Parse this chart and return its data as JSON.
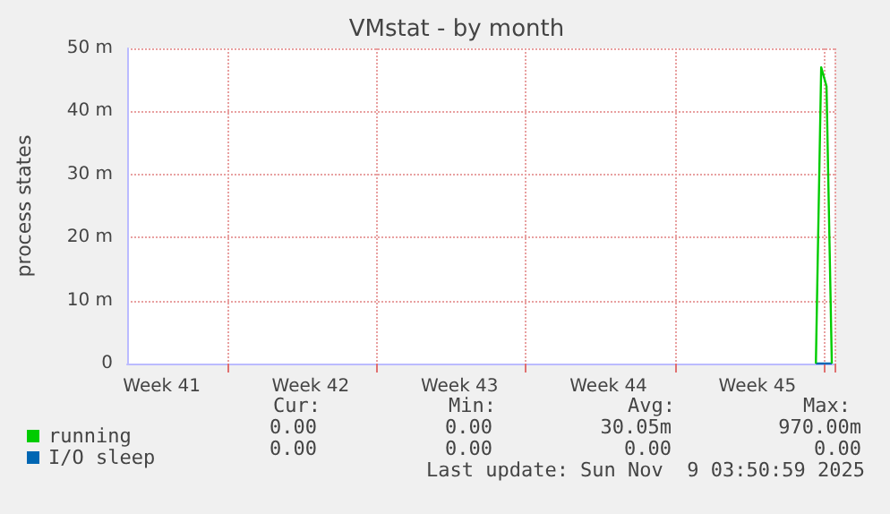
{
  "chart_data": {
    "type": "line",
    "title": "VMstat - by month",
    "ylabel": "process states",
    "categories": [
      null,
      null,
      null,
      null,
      null,
      null,
      "Week 41",
      null,
      null,
      null,
      null,
      null,
      null,
      null,
      null,
      null,
      null,
      null,
      null,
      null,
      null,
      null,
      null,
      null,
      null,
      null,
      null,
      null,
      null,
      null,
      null,
      null,
      null,
      null,
      "Week 42",
      null,
      null,
      null,
      null,
      null,
      null,
      null,
      null,
      null,
      null,
      null,
      null,
      null,
      null,
      null,
      null,
      null,
      null,
      null,
      null,
      null,
      null,
      null,
      null,
      null,
      null,
      null,
      "Week 43",
      null,
      null,
      null,
      null,
      null,
      null,
      null,
      null,
      null,
      null,
      null,
      null,
      null,
      null,
      null,
      null,
      null,
      null,
      null,
      null,
      null,
      null,
      null,
      null,
      null,
      null,
      null,
      "Week 44",
      null,
      null,
      null,
      null,
      null,
      null,
      null,
      null,
      null,
      null,
      null,
      null,
      null,
      null,
      null,
      null,
      null,
      null,
      null,
      null,
      null,
      null,
      null,
      null,
      null,
      null,
      null,
      "Week 45",
      null,
      null,
      null,
      null,
      null,
      null,
      null,
      null,
      null,
      null,
      null,
      null,
      null,
      null
    ],
    "series": [
      {
        "name": "running",
        "color": "#00cc00",
        "values": [
          null,
          null,
          null,
          null,
          null,
          null,
          null,
          null,
          null,
          null,
          null,
          null,
          null,
          null,
          null,
          null,
          null,
          null,
          null,
          null,
          null,
          null,
          null,
          null,
          null,
          null,
          null,
          null,
          null,
          null,
          null,
          null,
          null,
          null,
          null,
          null,
          null,
          null,
          null,
          null,
          null,
          null,
          null,
          null,
          null,
          null,
          null,
          null,
          null,
          null,
          null,
          null,
          null,
          null,
          null,
          null,
          null,
          null,
          null,
          null,
          null,
          null,
          null,
          null,
          null,
          null,
          null,
          null,
          null,
          null,
          null,
          null,
          null,
          null,
          null,
          null,
          null,
          null,
          null,
          null,
          null,
          null,
          null,
          null,
          null,
          null,
          null,
          null,
          null,
          null,
          null,
          null,
          null,
          null,
          null,
          null,
          null,
          null,
          null,
          null,
          null,
          null,
          null,
          null,
          null,
          null,
          null,
          null,
          null,
          null,
          null,
          null,
          null,
          null,
          null,
          null,
          null,
          null,
          null,
          null,
          null,
          null,
          null,
          null,
          null,
          null,
          null,
          null,
          null,
          0,
          47,
          44,
          0
        ]
      },
      {
        "name": "I/O sleep",
        "color": "#0066b3",
        "values": [
          null,
          null,
          null,
          null,
          null,
          null,
          null,
          null,
          null,
          null,
          null,
          null,
          null,
          null,
          null,
          null,
          null,
          null,
          null,
          null,
          null,
          null,
          null,
          null,
          null,
          null,
          null,
          null,
          null,
          null,
          null,
          null,
          null,
          null,
          null,
          null,
          null,
          null,
          null,
          null,
          null,
          null,
          null,
          null,
          null,
          null,
          null,
          null,
          null,
          null,
          null,
          null,
          null,
          null,
          null,
          null,
          null,
          null,
          null,
          null,
          null,
          null,
          null,
          null,
          null,
          null,
          null,
          null,
          null,
          null,
          null,
          null,
          null,
          null,
          null,
          null,
          null,
          null,
          null,
          null,
          null,
          null,
          null,
          null,
          null,
          null,
          null,
          null,
          null,
          null,
          null,
          null,
          null,
          null,
          null,
          null,
          null,
          null,
          null,
          null,
          null,
          null,
          null,
          null,
          null,
          null,
          null,
          null,
          null,
          null,
          null,
          null,
          null,
          null,
          null,
          null,
          null,
          null,
          null,
          null,
          null,
          null,
          null,
          null,
          null,
          null,
          null,
          null,
          null,
          0,
          0,
          0,
          0
        ]
      }
    ],
    "ylim": [
      0,
      50
    ],
    "yticks": [
      0,
      {
        "value": 10,
        "label": "10 m"
      },
      {
        "value": 20,
        "label": "20 m"
      },
      {
        "value": 30,
        "label": "30 m"
      },
      {
        "value": 40,
        "label": "40 m"
      },
      {
        "value": 50,
        "label": "50 m"
      }
    ],
    "grid": true,
    "legend": "bottom left",
    "marker": "none",
    "line_style": "solid",
    "annotations": [
      "Cur:",
      "Min:",
      "Avg:",
      "Max:",
      "0.00",
      "0.00",
      "30.05m",
      "970.00m",
      "0.00",
      "0.00",
      "0.00",
      "0.00",
      "Last update: Sun Nov  9 03:50:59 2025"
    ]
  }
}
